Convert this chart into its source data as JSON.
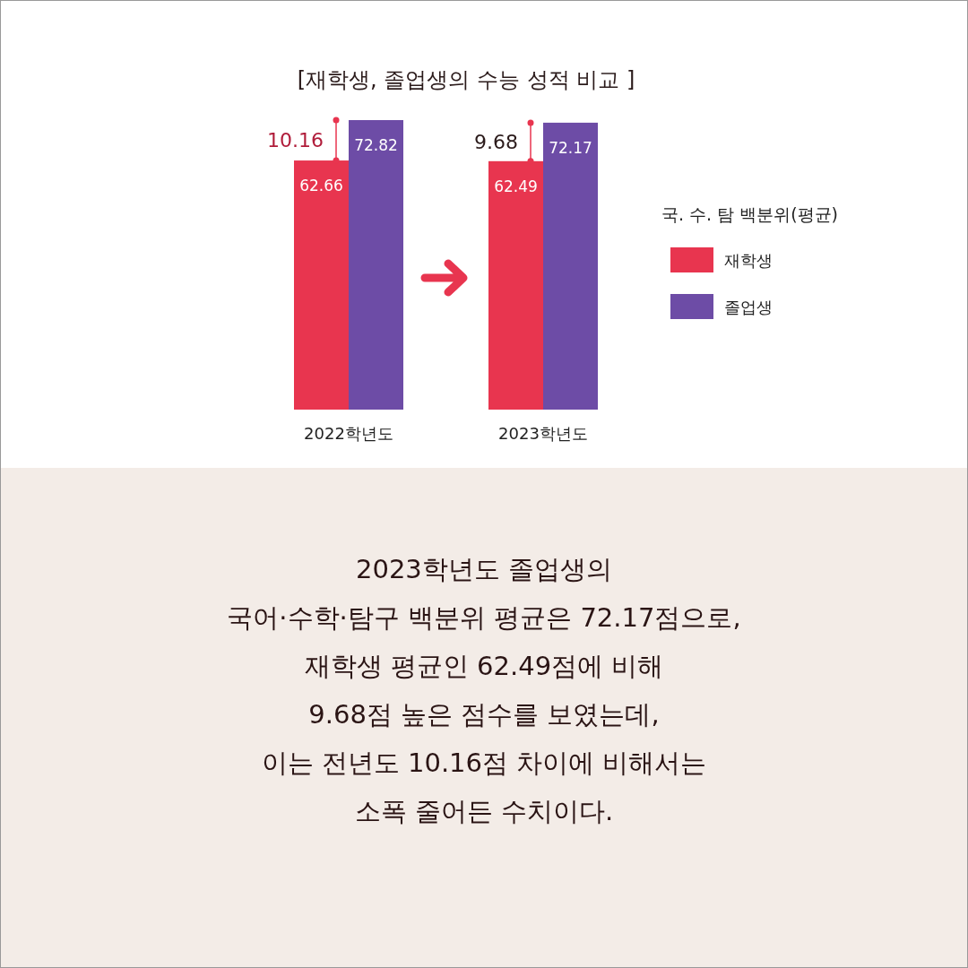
{
  "chart_data": {
    "type": "bar",
    "title": "[재학생, 졸업생의 수능 성적 비교 ]",
    "categories": [
      "2022학년도",
      "2023학년도"
    ],
    "series": [
      {
        "name": "재학생",
        "color": "#e8354f",
        "values": [
          62.66,
          62.49
        ]
      },
      {
        "name": "졸업생",
        "color": "#6d4ca6",
        "values": [
          72.82,
          72.17
        ]
      }
    ],
    "data_labels": true,
    "legend": "right",
    "legend_title": "국. 수. 탐 백분위(평균)",
    "annotations": [
      {
        "text": "10.16",
        "x": "2022학년도",
        "y": 67.74
      },
      {
        "text": "9.68",
        "x": "2023학년도",
        "y": 67.33
      },
      "2023학년도 졸업생의",
      "국어·수학·탐구 백분위 평균은 72.17점으로,",
      "재학생 평균인 62.49점에 비해",
      "9.68점 높은 점수를 보였는데,",
      "이는 전년도 10.16점 차이에 비해서는",
      "소폭 줄어든 수치이다."
    ]
  }
}
